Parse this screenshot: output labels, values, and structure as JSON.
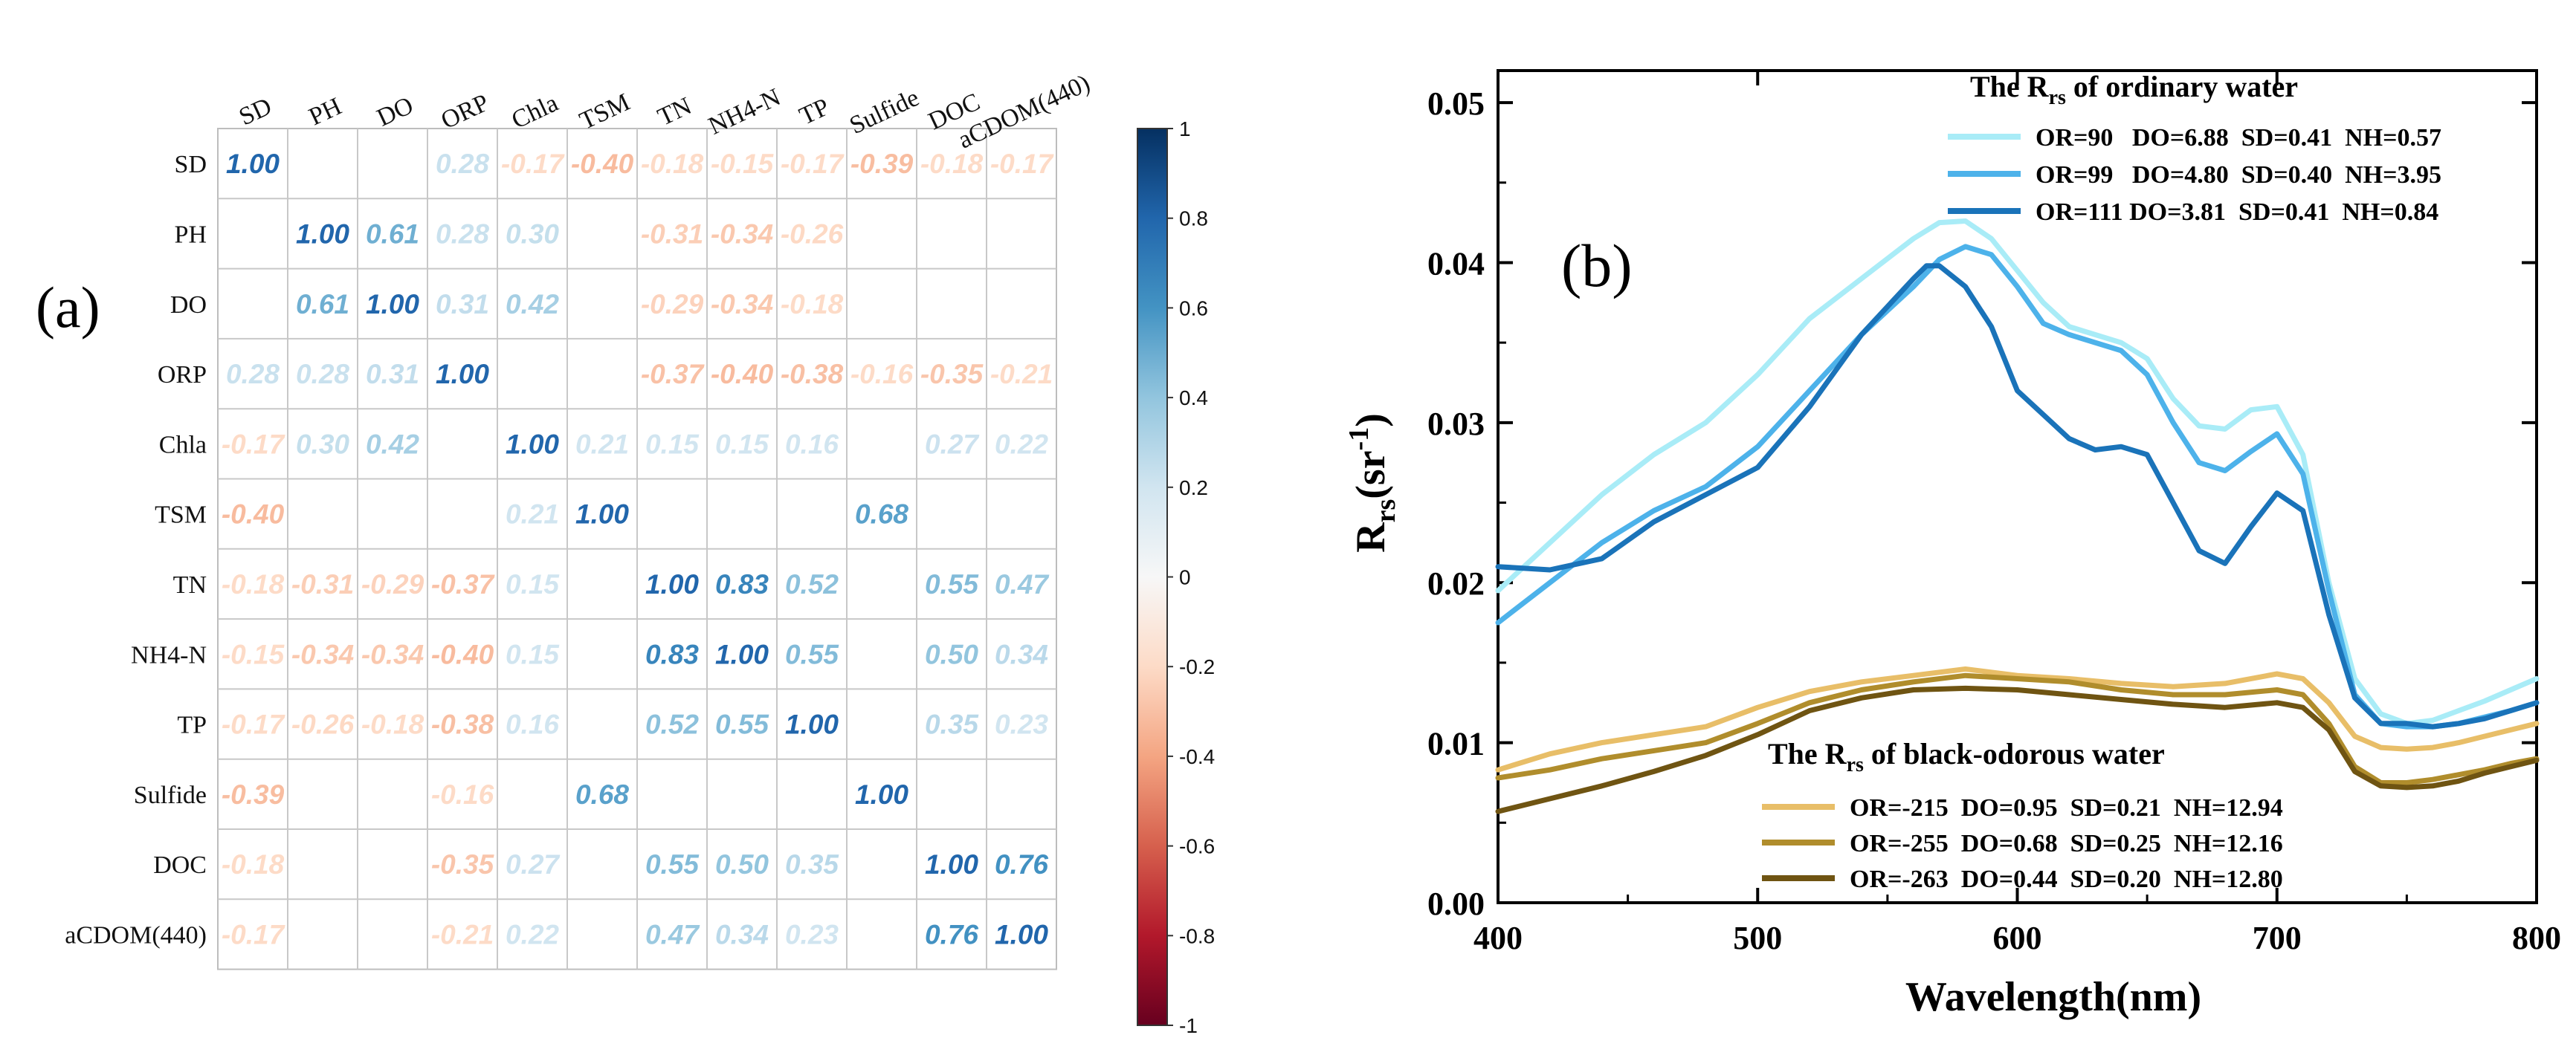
{
  "chart_data": [
    {
      "type": "heatmap",
      "panel_label": "(a)",
      "variables": [
        "SD",
        "PH",
        "DO",
        "ORP",
        "Chla",
        "TSM",
        "TN",
        "NH4-N",
        "TP",
        "Sulfide",
        "DOC",
        "aCDOM(440)"
      ],
      "row_labels": [
        "SD",
        "PH",
        "DO",
        "ORP",
        "Chla",
        "TSM",
        "TN",
        "NH4-N",
        "TP",
        "Sulfide",
        "DOC",
        "aCDOM(440)"
      ],
      "matrix": [
        [
          1.0,
          null,
          null,
          0.28,
          -0.17,
          -0.4,
          -0.18,
          -0.15,
          -0.17,
          -0.39,
          -0.18,
          -0.17
        ],
        [
          null,
          1.0,
          0.61,
          0.28,
          0.3,
          null,
          -0.31,
          -0.34,
          -0.26,
          null,
          null,
          null
        ],
        [
          null,
          0.61,
          1.0,
          0.31,
          0.42,
          null,
          -0.29,
          -0.34,
          -0.18,
          null,
          null,
          null
        ],
        [
          0.28,
          0.28,
          0.31,
          1.0,
          null,
          null,
          -0.37,
          -0.4,
          -0.38,
          -0.16,
          -0.35,
          -0.21
        ],
        [
          -0.17,
          0.3,
          0.42,
          null,
          1.0,
          0.21,
          0.15,
          0.15,
          0.16,
          null,
          0.27,
          0.22
        ],
        [
          -0.4,
          null,
          null,
          null,
          0.21,
          1.0,
          null,
          null,
          null,
          0.68,
          null,
          null
        ],
        [
          -0.18,
          -0.31,
          -0.29,
          -0.37,
          0.15,
          null,
          1.0,
          0.83,
          0.52,
          null,
          0.55,
          0.47
        ],
        [
          -0.15,
          -0.34,
          -0.34,
          -0.4,
          0.15,
          null,
          0.83,
          1.0,
          0.55,
          null,
          0.5,
          0.34
        ],
        [
          -0.17,
          -0.26,
          -0.18,
          -0.38,
          0.16,
          null,
          0.52,
          0.55,
          1.0,
          null,
          0.35,
          0.23
        ],
        [
          -0.39,
          null,
          null,
          -0.16,
          null,
          0.68,
          null,
          null,
          null,
          1.0,
          null,
          null
        ],
        [
          -0.18,
          null,
          null,
          -0.35,
          0.27,
          null,
          0.55,
          0.5,
          0.35,
          null,
          1.0,
          0.76
        ],
        [
          -0.17,
          null,
          null,
          -0.21,
          0.22,
          null,
          0.47,
          0.34,
          0.23,
          null,
          0.76,
          1.0
        ]
      ],
      "colorbar": {
        "range": [
          -1,
          1
        ],
        "tick_labels": [
          "1",
          "0.8",
          "0.6",
          "0.4",
          "0.2",
          "0",
          "-0.2",
          "-0.4",
          "-0.6",
          "-0.8",
          "-1"
        ],
        "colors": {
          "low": "#67001f",
          "mid": "#f7f7f7",
          "high": "#053061"
        }
      }
    },
    {
      "type": "line",
      "panel_label": "(b)",
      "xlabel": "Wavelength(nm)",
      "ylabel_main": "R",
      "ylabel_sub": "rs",
      "ylabel_unit_open": "(sr",
      "ylabel_unit_sup": "-1",
      "ylabel_unit_close": ")",
      "xlim": [
        400,
        800
      ],
      "ylim": [
        0,
        0.052
      ],
      "x_tick_labels": [
        "400",
        "500",
        "600",
        "700",
        "800"
      ],
      "y_tick_labels": [
        "0.00",
        "0.01",
        "0.02",
        "0.03",
        "0.04",
        "0.05"
      ],
      "legend_groups": [
        {
          "title_main": "The R",
          "title_sub": "rs",
          "title_rest": " of ordinary water",
          "placement": "top"
        },
        {
          "title_main": "The R",
          "title_sub": "rs",
          "title_rest": " of black-odorous water",
          "placement": "bottom"
        }
      ],
      "series": [
        {
          "name": "OR=90   DO=6.88  SD=0.41  NH=0.57",
          "group": 0,
          "color": "#a9ecf7",
          "x": [
            400,
            420,
            440,
            460,
            480,
            500,
            520,
            540,
            560,
            570,
            580,
            590,
            600,
            610,
            620,
            640,
            650,
            660,
            670,
            680,
            690,
            700,
            710,
            720,
            730,
            740,
            750,
            760,
            770,
            780,
            790,
            800
          ],
          "y": [
            0.0195,
            0.0225,
            0.0255,
            0.028,
            0.03,
            0.033,
            0.0365,
            0.039,
            0.0415,
            0.0425,
            0.0426,
            0.0415,
            0.0395,
            0.0375,
            0.036,
            0.035,
            0.034,
            0.0315,
            0.0298,
            0.0296,
            0.0308,
            0.031,
            0.028,
            0.02,
            0.014,
            0.0118,
            0.0112,
            0.0114,
            0.012,
            0.0126,
            0.0133,
            0.014
          ]
        },
        {
          "name": "OR=99   DO=4.80  SD=0.40  NH=3.95",
          "group": 0,
          "color": "#4db2ea",
          "x": [
            400,
            420,
            440,
            460,
            480,
            500,
            520,
            540,
            560,
            570,
            580,
            590,
            600,
            610,
            620,
            640,
            650,
            660,
            670,
            680,
            690,
            700,
            710,
            720,
            730,
            740,
            750,
            760,
            770,
            780,
            790,
            800
          ],
          "y": [
            0.0175,
            0.02,
            0.0225,
            0.0245,
            0.026,
            0.0285,
            0.032,
            0.0355,
            0.0385,
            0.0402,
            0.041,
            0.0405,
            0.0385,
            0.0362,
            0.0355,
            0.0345,
            0.033,
            0.03,
            0.0275,
            0.027,
            0.0282,
            0.0293,
            0.0268,
            0.0195,
            0.013,
            0.0112,
            0.011,
            0.011,
            0.0112,
            0.0116,
            0.012,
            0.0125
          ]
        },
        {
          "name": "OR=111 DO=3.81  SD=0.41  NH=0.84",
          "group": 0,
          "color": "#1a73b9",
          "x": [
            400,
            420,
            440,
            460,
            480,
            500,
            520,
            540,
            560,
            565,
            570,
            580,
            590,
            600,
            610,
            620,
            630,
            640,
            650,
            660,
            670,
            680,
            690,
            700,
            710,
            720,
            730,
            740,
            750,
            760,
            770,
            780,
            790,
            800
          ],
          "y": [
            0.021,
            0.0208,
            0.0215,
            0.0238,
            0.0255,
            0.0272,
            0.031,
            0.0355,
            0.039,
            0.0398,
            0.0398,
            0.0385,
            0.036,
            0.032,
            0.0305,
            0.029,
            0.0283,
            0.0285,
            0.028,
            0.025,
            0.022,
            0.0212,
            0.0235,
            0.0256,
            0.0245,
            0.018,
            0.0128,
            0.0112,
            0.0112,
            0.011,
            0.0112,
            0.0115,
            0.012,
            0.0125
          ]
        },
        {
          "name": "OR=-215  DO=0.95  SD=0.21  NH=12.94",
          "group": 1,
          "color": "#e8be68",
          "x": [
            400,
            420,
            440,
            460,
            480,
            500,
            520,
            540,
            560,
            580,
            600,
            620,
            640,
            660,
            680,
            700,
            710,
            720,
            730,
            740,
            750,
            760,
            770,
            780,
            790,
            800
          ],
          "y": [
            0.0083,
            0.0093,
            0.01,
            0.0105,
            0.011,
            0.0122,
            0.0132,
            0.0138,
            0.0142,
            0.0146,
            0.0142,
            0.014,
            0.0137,
            0.0135,
            0.0137,
            0.0143,
            0.014,
            0.0125,
            0.0104,
            0.0097,
            0.0096,
            0.0097,
            0.01,
            0.0104,
            0.0108,
            0.0112
          ]
        },
        {
          "name": "OR=-255  DO=0.68  SD=0.25  NH=12.16",
          "group": 1,
          "color": "#b08d2c",
          "x": [
            400,
            420,
            440,
            460,
            480,
            500,
            520,
            540,
            560,
            580,
            600,
            620,
            640,
            660,
            680,
            700,
            710,
            720,
            730,
            740,
            750,
            760,
            770,
            780,
            790,
            800
          ],
          "y": [
            0.0078,
            0.0083,
            0.009,
            0.0095,
            0.01,
            0.0112,
            0.0125,
            0.0133,
            0.0138,
            0.0142,
            0.014,
            0.0138,
            0.0133,
            0.013,
            0.013,
            0.0133,
            0.013,
            0.0112,
            0.0085,
            0.0075,
            0.0075,
            0.0077,
            0.008,
            0.0083,
            0.0087,
            0.009
          ]
        },
        {
          "name": "OR=-263  DO=0.44  SD=0.20  NH=12.80",
          "group": 1,
          "color": "#6f5412",
          "x": [
            400,
            420,
            440,
            460,
            480,
            500,
            520,
            540,
            560,
            580,
            600,
            620,
            640,
            660,
            680,
            700,
            710,
            720,
            730,
            740,
            750,
            760,
            770,
            780,
            790,
            800
          ],
          "y": [
            0.0057,
            0.0065,
            0.0073,
            0.0082,
            0.0092,
            0.0105,
            0.012,
            0.0128,
            0.0133,
            0.0134,
            0.0133,
            0.013,
            0.0127,
            0.0124,
            0.0122,
            0.0125,
            0.0122,
            0.0108,
            0.0082,
            0.0073,
            0.0072,
            0.0073,
            0.0076,
            0.0081,
            0.0085,
            0.0089
          ]
        }
      ]
    }
  ]
}
